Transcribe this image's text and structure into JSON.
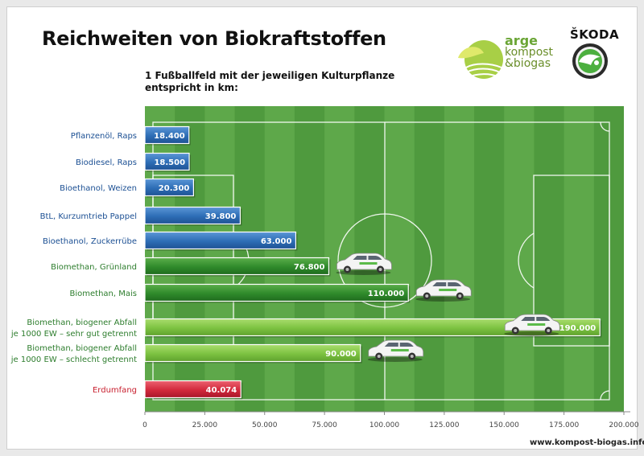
{
  "title": "Reichweiten von Biokraftstoffen",
  "subtitle_lines": [
    "1 Fußballfeld mit der jeweiligen Kulturpflanze",
    "entspricht in km:"
  ],
  "logos": {
    "arge_lines": [
      "arge",
      "kompost",
      "&biogas"
    ],
    "skoda": "ŠKODA"
  },
  "website": "www.kompost-biogas.info",
  "colors": {
    "blue": "#2d6db5",
    "dark_green": "#2f8a2b",
    "light_green": "#7cc241",
    "red": "#d2283c",
    "field": "#4f9a3e",
    "label_blue": "#1b4f93",
    "label_green": "#2d7d2d",
    "label_red": "#c8202f"
  },
  "chart_data": {
    "type": "bar",
    "orientation": "horizontal",
    "xlim": [
      0,
      200000
    ],
    "xticks": [
      "0",
      "25.000",
      "50.000",
      "75.000",
      "100.000",
      "125.000",
      "150.000",
      "175.000",
      "200.000"
    ],
    "categories": [
      {
        "label": [
          "Pflanzenöl, Raps"
        ],
        "value": 18400,
        "value_label": "18.400",
        "color": "blue",
        "car": false
      },
      {
        "label": [
          "Biodiesel, Raps"
        ],
        "value": 18500,
        "value_label": "18.500",
        "color": "blue",
        "car": false
      },
      {
        "label": [
          "Bioethanol, Weizen"
        ],
        "value": 20300,
        "value_label": "20.300",
        "color": "blue",
        "car": false
      },
      {
        "label": [
          "BtL, Kurzumtrieb Pappel"
        ],
        "value": 39800,
        "value_label": "39.800",
        "color": "blue",
        "car": false
      },
      {
        "label": [
          "Bioethanol, Zuckerrübe"
        ],
        "value": 63000,
        "value_label": "63.000",
        "color": "blue",
        "car": false
      },
      {
        "label": [
          "Biomethan, Grünland"
        ],
        "value": 76800,
        "value_label": "76.800",
        "color": "dark_green",
        "car": true
      },
      {
        "label": [
          "Biomethan, Mais"
        ],
        "value": 110000,
        "value_label": "110.000",
        "color": "dark_green",
        "car": true
      },
      {
        "label": [
          "Biomethan, biogener Abfall",
          "je 1000 EW – sehr gut getrennt"
        ],
        "value": 190000,
        "value_label": "190.000",
        "color": "light_green",
        "car": true
      },
      {
        "label": [
          "Biomethan, biogener Abfall",
          "je 1000 EW – schlecht getrennt"
        ],
        "value": 90000,
        "value_label": "90.000",
        "color": "light_green",
        "car": true
      },
      {
        "label": [
          "Erdumfang"
        ],
        "value": 40074,
        "value_label": "40.074",
        "color": "red",
        "car": false
      }
    ]
  }
}
